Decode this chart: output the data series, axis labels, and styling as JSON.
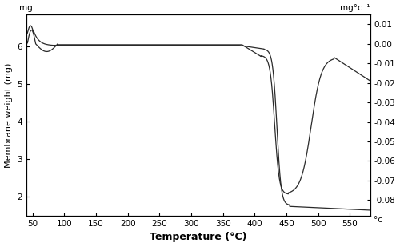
{
  "xlabel": "Temperature (°C)",
  "ylabel": "Membrane weight (mg)",
  "label_top_left": "mg",
  "label_top_right": "mg°c⁻¹",
  "label_bottom_right": "°c",
  "xlim": [
    40,
    582
  ],
  "ylim_left": [
    1.5,
    6.85
  ],
  "ylim_right": [
    -0.088,
    0.015
  ],
  "xticks": [
    50,
    100,
    150,
    200,
    250,
    300,
    350,
    400,
    450,
    500,
    550
  ],
  "yticks_left": [
    2,
    3,
    4,
    5,
    6
  ],
  "yticks_right": [
    0.01,
    0.0,
    -0.01,
    -0.02,
    -0.03,
    -0.04,
    -0.05,
    -0.06,
    -0.07,
    -0.08
  ],
  "line_color": "#2a2a2a",
  "background_color": "#ffffff",
  "xlabel_fontsize": 9,
  "ylabel_fontsize": 8,
  "tick_fontsize": 7.5,
  "annotation_fontsize": 7.5,
  "figsize": [
    5.0,
    3.09
  ],
  "dpi": 100
}
